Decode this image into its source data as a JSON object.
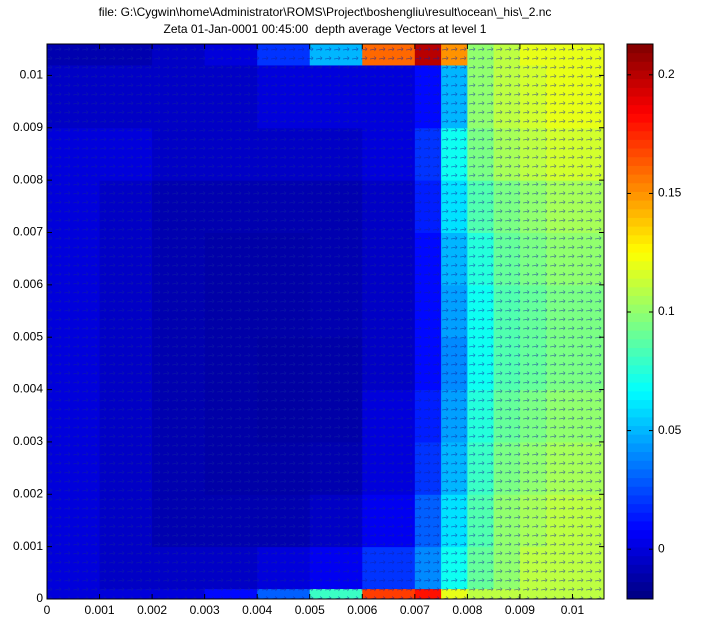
{
  "chart_data": {
    "type": "heatmap",
    "title": "file: G:\\Cygwin\\home\\Administrator\\ROMS\\Project\\boshengliu\\result\\ocean\\_his\\_2.nc",
    "subtitle": "Zeta 01-Jan-0001 00:45:00  depth average Vectors at level 1",
    "colormap": "jet",
    "xbins": [
      0,
      0.001,
      0.002,
      0.003,
      0.004,
      0.005,
      0.006,
      0.007,
      0.0075,
      0.008,
      0.0085,
      0.009,
      0.0095,
      0.0106
    ],
    "ybins": [
      0,
      0.0002,
      0.001,
      0.002,
      0.003,
      0.004,
      0.005,
      0.006,
      0.007,
      0.008,
      0.009,
      0.0102,
      0.0106
    ],
    "z": [
      [
        0,
        0,
        0,
        0.01,
        0.03,
        0.08,
        0.17,
        0.18,
        0.12,
        0.11,
        0.11,
        0.11,
        0.11
      ],
      [
        0,
        -0.005,
        -0.005,
        -0.005,
        0,
        0.005,
        0.02,
        0.04,
        0.07,
        0.09,
        0.1,
        0.11,
        0.11
      ],
      [
        0,
        -0.005,
        -0.01,
        -0.01,
        -0.01,
        -0.005,
        0.005,
        0.03,
        0.06,
        0.085,
        0.1,
        0.105,
        0.11
      ],
      [
        0,
        -0.005,
        -0.01,
        -0.012,
        -0.012,
        -0.01,
        0,
        0.02,
        0.05,
        0.08,
        0.095,
        0.1,
        0.105
      ],
      [
        0,
        -0.005,
        -0.01,
        -0.012,
        -0.013,
        -0.012,
        0,
        0.015,
        0.045,
        0.075,
        0.09,
        0.095,
        0.1
      ],
      [
        0,
        -0.005,
        -0.01,
        -0.012,
        -0.013,
        -0.012,
        -0.005,
        0.01,
        0.04,
        0.07,
        0.085,
        0.09,
        0.095
      ],
      [
        0,
        -0.005,
        -0.01,
        -0.012,
        -0.012,
        -0.01,
        -0.005,
        0.01,
        0.045,
        0.07,
        0.085,
        0.09,
        0.095
      ],
      [
        0,
        -0.005,
        -0.01,
        -0.012,
        -0.012,
        -0.01,
        -0.005,
        0.01,
        0.05,
        0.075,
        0.09,
        0.095,
        0.1
      ],
      [
        0,
        -0.005,
        -0.01,
        -0.01,
        -0.01,
        -0.01,
        -0.005,
        0.015,
        0.06,
        0.085,
        0.095,
        0.1,
        0.105
      ],
      [
        0,
        0,
        -0.005,
        -0.005,
        -0.005,
        -0.005,
        0,
        0.02,
        0.07,
        0.095,
        0.105,
        0.11,
        0.115
      ],
      [
        -0.005,
        -0.005,
        -0.005,
        -0.005,
        0,
        0,
        0,
        0.01,
        0.05,
        0.1,
        0.11,
        0.115,
        0.12
      ],
      [
        -0.01,
        -0.01,
        -0.005,
        0,
        0.02,
        0.05,
        0.16,
        0.2,
        0.15,
        0.1,
        0.11,
        0.12,
        0.12
      ]
    ],
    "xlim": [
      0,
      0.0106
    ],
    "ylim": [
      0,
      0.0106
    ],
    "xticks": [
      0,
      0.001,
      0.002,
      0.003,
      0.004,
      0.005,
      0.006,
      0.007,
      0.008,
      0.009,
      0.01
    ],
    "yticks": [
      0,
      0.001,
      0.002,
      0.003,
      0.004,
      0.005,
      0.006,
      0.007,
      0.008,
      0.009,
      0.01
    ],
    "clim": [
      -0.021,
      0.213
    ],
    "cticks": [
      0,
      0.05,
      0.1,
      0.15,
      0.2
    ]
  }
}
